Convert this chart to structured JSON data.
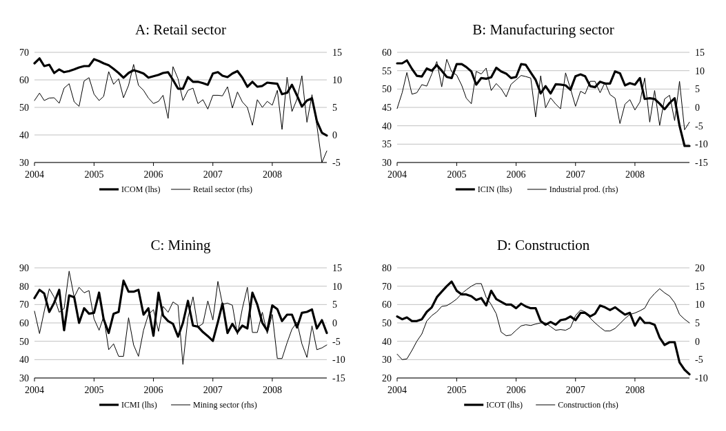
{
  "chart_data": [
    {
      "type": "line",
      "title": "A: Retail sector",
      "x": [
        "2004-01",
        "2004-02",
        "2004-03",
        "2004-04",
        "2004-05",
        "2004-06",
        "2004-07",
        "2004-08",
        "2004-09",
        "2004-10",
        "2004-11",
        "2004-12",
        "2005-01",
        "2005-02",
        "2005-03",
        "2005-04",
        "2005-05",
        "2005-06",
        "2005-07",
        "2005-08",
        "2005-09",
        "2005-10",
        "2005-11",
        "2005-12",
        "2006-01",
        "2006-02",
        "2006-03",
        "2006-04",
        "2006-05",
        "2006-06",
        "2006-07",
        "2006-08",
        "2006-09",
        "2006-10",
        "2006-11",
        "2006-12",
        "2007-01",
        "2007-02",
        "2007-03",
        "2007-04",
        "2007-05",
        "2007-06",
        "2007-07",
        "2007-08",
        "2007-09",
        "2007-10",
        "2007-11",
        "2007-12",
        "2008-01",
        "2008-02",
        "2008-03",
        "2008-04",
        "2008-05",
        "2008-06",
        "2008-07",
        "2008-08",
        "2008-09",
        "2008-10",
        "2008-11",
        "2008-12"
      ],
      "xlim": [
        "2004-01",
        "2008-12"
      ],
      "xticks": [
        "2004",
        "2005",
        "2006",
        "2007",
        "2008"
      ],
      "ylim": [
        30,
        70
      ],
      "yticks": [
        30,
        40,
        50,
        60,
        70
      ],
      "y2lim": [
        -5,
        15
      ],
      "y2ticks": [
        -5,
        0,
        5,
        10,
        15
      ],
      "grid": "y",
      "legend": "bottom",
      "series": [
        {
          "name": "ICOM (lhs)",
          "color": "#000000",
          "values": [
            66,
            67.8,
            65,
            65.5,
            62.5,
            63.8,
            62.8,
            63.2,
            63.8,
            64.5,
            65,
            65,
            67.5,
            66.8,
            66,
            65.3,
            64,
            62.5,
            60.8,
            62.5,
            63.5,
            63,
            62.3,
            60.8,
            61.3,
            61.8,
            62.5,
            62.8,
            60,
            56.8,
            56.8,
            61,
            59.3,
            59.3,
            58.8,
            58.2,
            62.3,
            62.8,
            61.5,
            61,
            62.3,
            63.2,
            60.8,
            57.5,
            59.3,
            57.5,
            57.8,
            59,
            58.8,
            58.6,
            54.8,
            55.3,
            58.2,
            54.3,
            50.3,
            52.5,
            53.3,
            45,
            40.8,
            39.8
          ]
        },
        {
          "name": "Retail sector (rhs)",
          "color": "#000000",
          "axis": "y2",
          "values": [
            6.25,
            7.6,
            6.25,
            6.7,
            6.75,
            5.75,
            8.5,
            9.3,
            6,
            5.2,
            9.8,
            10.4,
            7.4,
            6.25,
            7,
            11.5,
            9.2,
            10.2,
            6.75,
            9,
            12.8,
            9,
            8.1,
            6.7,
            5.7,
            6.1,
            7.2,
            3,
            12.4,
            10.2,
            6.25,
            8.1,
            8.5,
            5.7,
            6.4,
            4.7,
            7.2,
            7.2,
            7.1,
            8.75,
            4.9,
            7.8,
            6,
            5,
            1.75,
            6.4,
            5,
            6.1,
            5.4,
            8.1,
            1,
            10.5,
            4.25,
            6.5,
            10.75,
            2.3,
            7.3,
            1.7,
            -5,
            -2.9
          ]
        }
      ]
    },
    {
      "type": "line",
      "title": "B: Manufacturing sector",
      "x": [
        "2004-01",
        "2004-02",
        "2004-03",
        "2004-04",
        "2004-05",
        "2004-06",
        "2004-07",
        "2004-08",
        "2004-09",
        "2004-10",
        "2004-11",
        "2004-12",
        "2005-01",
        "2005-02",
        "2005-03",
        "2005-04",
        "2005-05",
        "2005-06",
        "2005-07",
        "2005-08",
        "2005-09",
        "2005-10",
        "2005-11",
        "2005-12",
        "2006-01",
        "2006-02",
        "2006-03",
        "2006-04",
        "2006-05",
        "2006-06",
        "2006-07",
        "2006-08",
        "2006-09",
        "2006-10",
        "2006-11",
        "2006-12",
        "2007-01",
        "2007-02",
        "2007-03",
        "2007-04",
        "2007-05",
        "2007-06",
        "2007-07",
        "2007-08",
        "2007-09",
        "2007-10",
        "2007-11",
        "2007-12",
        "2008-01",
        "2008-02",
        "2008-03",
        "2008-04",
        "2008-05",
        "2008-06",
        "2008-07",
        "2008-08",
        "2008-09",
        "2008-10",
        "2008-11",
        "2008-12"
      ],
      "xlim": [
        "2004-01",
        "2008-12"
      ],
      "xticks": [
        "2004",
        "2005",
        "2006",
        "2007",
        "2008"
      ],
      "ylim": [
        30,
        60
      ],
      "yticks": [
        30,
        35,
        40,
        45,
        50,
        55,
        60
      ],
      "y2lim": [
        -15,
        15
      ],
      "y2ticks": [
        -15,
        -10,
        -5,
        0,
        5,
        10,
        15
      ],
      "grid": "y",
      "legend": "bottom",
      "series": [
        {
          "name": "ICIN (lhs)",
          "color": "#000000",
          "values": [
            57,
            57,
            57.8,
            55.5,
            53.6,
            53.4,
            55.6,
            55,
            56.5,
            55,
            53.3,
            53,
            56.8,
            56.8,
            56,
            54.8,
            51.2,
            53,
            52.8,
            53.2,
            55.8,
            54.8,
            54.2,
            53,
            53.3,
            56.8,
            56.6,
            54.5,
            52.5,
            48.8,
            50.8,
            48.8,
            51.3,
            51.2,
            51,
            49.8,
            53.5,
            54,
            53.5,
            50.8,
            50.5,
            52,
            51.5,
            51.5,
            54.8,
            54.3,
            51,
            51.6,
            51.2,
            53,
            47.3,
            47.5,
            47.3,
            46,
            44.5,
            46.2,
            47.5,
            40,
            34.5,
            34.5
          ]
        },
        {
          "name": "Industrial prod. (rhs)",
          "color": "#000000",
          "axis": "y2",
          "values": [
            -0.3,
            4,
            9.5,
            3.6,
            4,
            6.2,
            5.8,
            9.1,
            12.5,
            5.6,
            13.1,
            9.7,
            8.8,
            6,
            2.5,
            1,
            9.8,
            9.1,
            10.7,
            4.6,
            6.5,
            5.1,
            2.9,
            6.3,
            7.5,
            8.7,
            8.4,
            8,
            -2.6,
            8.6,
            -0.1,
            2.6,
            0.9,
            -0.4,
            9.4,
            5.1,
            0.3,
            4.4,
            3.7,
            7.1,
            7.1,
            4,
            6.8,
            3.5,
            2.5,
            -4.4,
            0.9,
            2.1,
            -0.7,
            1.5,
            8,
            -4,
            4.6,
            -4.9,
            2.3,
            3.3,
            -3.6,
            7.1,
            -6.1,
            -4
          ]
        }
      ]
    },
    {
      "type": "line",
      "title": "C: Mining",
      "x": [
        "2004-01",
        "2004-02",
        "2004-03",
        "2004-04",
        "2004-05",
        "2004-06",
        "2004-07",
        "2004-08",
        "2004-09",
        "2004-10",
        "2004-11",
        "2004-12",
        "2005-01",
        "2005-02",
        "2005-03",
        "2005-04",
        "2005-05",
        "2005-06",
        "2005-07",
        "2005-08",
        "2005-09",
        "2005-10",
        "2005-11",
        "2005-12",
        "2006-01",
        "2006-02",
        "2006-03",
        "2006-04",
        "2006-05",
        "2006-06",
        "2006-07",
        "2006-08",
        "2006-09",
        "2006-10",
        "2006-11",
        "2006-12",
        "2007-01",
        "2007-02",
        "2007-03",
        "2007-04",
        "2007-05",
        "2007-06",
        "2007-07",
        "2007-08",
        "2007-09",
        "2007-10",
        "2007-11",
        "2007-12",
        "2008-01",
        "2008-02",
        "2008-03",
        "2008-04",
        "2008-05",
        "2008-06",
        "2008-07",
        "2008-08",
        "2008-09",
        "2008-10",
        "2008-11",
        "2008-12"
      ],
      "xlim": [
        "2004-01",
        "2008-12"
      ],
      "xticks": [
        "2004",
        "2005",
        "2006",
        "2007",
        "2008"
      ],
      "ylim": [
        30,
        90
      ],
      "yticks": [
        30,
        40,
        50,
        60,
        70,
        80,
        90
      ],
      "y2lim": [
        -15,
        15
      ],
      "y2ticks": [
        -15,
        -10,
        -5,
        0,
        5,
        10,
        15
      ],
      "grid": "y",
      "legend": "bottom",
      "series": [
        {
          "name": "ICMI (lhs)",
          "color": "#000000",
          "values": [
            73.5,
            78,
            76,
            66,
            71,
            78,
            56,
            75,
            74,
            60,
            68,
            65,
            65.5,
            76.5,
            62,
            54.5,
            65,
            66,
            83,
            77,
            77,
            78,
            64.5,
            68,
            53,
            76.5,
            64,
            61,
            59.5,
            52.5,
            60,
            72,
            58.5,
            58,
            55,
            52.8,
            50.2,
            60.5,
            70.5,
            54.5,
            59.5,
            55,
            58.5,
            57,
            76.5,
            70,
            60,
            55.8,
            69.5,
            67.5,
            61,
            64.5,
            64.5,
            57.5,
            65.5,
            66,
            67.3,
            57,
            61.5,
            54.5
          ]
        },
        {
          "name": "Mining sector (rhs)",
          "color": "#000000",
          "axis": "y2",
          "values": [
            3.2,
            -2.9,
            3.2,
            9.3,
            7,
            2.9,
            3.9,
            14.1,
            7,
            9.7,
            8.2,
            8.8,
            1.1,
            -2,
            1.7,
            -7.3,
            -5.7,
            -9.1,
            -9.1,
            1.4,
            -6,
            -9.1,
            -2,
            2.3,
            3.6,
            -2.3,
            4.5,
            2.9,
            5.7,
            4.8,
            -11.3,
            1.4,
            7.1,
            -1.1,
            -0.2,
            6,
            0.8,
            11.3,
            5.1,
            5.4,
            4.8,
            -3.2,
            3.9,
            9.7,
            -2.6,
            -2.6,
            2.9,
            -2.9,
            2.3,
            -9.7,
            -9.7,
            -5.4,
            -1.7,
            0.2,
            -5.7,
            -9.4,
            -0.8,
            -7.3,
            -6.8,
            -6
          ]
        }
      ]
    },
    {
      "type": "line",
      "title": "D: Construction",
      "x": [
        "2004-01",
        "2004-02",
        "2004-03",
        "2004-04",
        "2004-05",
        "2004-06",
        "2004-07",
        "2004-08",
        "2004-09",
        "2004-10",
        "2004-11",
        "2004-12",
        "2005-01",
        "2005-02",
        "2005-03",
        "2005-04",
        "2005-05",
        "2005-06",
        "2005-07",
        "2005-08",
        "2005-09",
        "2005-10",
        "2005-11",
        "2005-12",
        "2006-01",
        "2006-02",
        "2006-03",
        "2006-04",
        "2006-05",
        "2006-06",
        "2006-07",
        "2006-08",
        "2006-09",
        "2006-10",
        "2006-11",
        "2006-12",
        "2007-01",
        "2007-02",
        "2007-03",
        "2007-04",
        "2007-05",
        "2007-06",
        "2007-07",
        "2007-08",
        "2007-09",
        "2007-10",
        "2007-11",
        "2007-12",
        "2008-01",
        "2008-02",
        "2008-03",
        "2008-04",
        "2008-05",
        "2008-06",
        "2008-07",
        "2008-08",
        "2008-09",
        "2008-10",
        "2008-11",
        "2008-12"
      ],
      "xlim": [
        "2004-01",
        "2008-12"
      ],
      "xticks": [
        "2004",
        "2005",
        "2006",
        "2007",
        "2008"
      ],
      "ylim": [
        20,
        80
      ],
      "yticks": [
        20,
        30,
        40,
        50,
        60,
        70,
        80
      ],
      "y2lim": [
        -10,
        20
      ],
      "y2ticks": [
        -10,
        -5,
        0,
        5,
        10,
        15,
        20
      ],
      "grid": "y",
      "legend": "bottom",
      "series": [
        {
          "name": "ICOT (lhs)",
          "color": "#000000",
          "values": [
            53.5,
            52,
            53,
            51,
            51,
            52,
            56,
            58.5,
            64,
            67,
            70,
            72.5,
            67.5,
            65.5,
            65.5,
            64.5,
            62.5,
            63.5,
            59.5,
            67.5,
            63,
            61.5,
            60,
            60,
            58,
            60.5,
            59,
            58,
            58,
            51,
            49,
            50.5,
            49,
            51.5,
            52,
            53.5,
            51.5,
            55.5,
            55.5,
            53.5,
            55,
            59.5,
            58.5,
            57,
            58.5,
            56.5,
            54.5,
            55.5,
            48.5,
            53,
            50,
            50,
            49,
            42,
            38,
            39.5,
            39.5,
            28.5,
            24.5,
            22
          ]
        },
        {
          "name": "Construction (rhs)",
          "color": "#000000",
          "axis": "y2",
          "values": [
            -3.5,
            -5,
            -4.8,
            -2.5,
            0,
            2,
            5.5,
            7,
            8,
            9.5,
            9.7,
            10.5,
            11.5,
            13,
            14,
            15,
            15.7,
            15.7,
            12,
            10,
            7.5,
            2.5,
            1.5,
            1.7,
            3,
            4.2,
            4.5,
            4.3,
            4.7,
            5,
            5,
            4,
            3,
            3.2,
            3,
            3.7,
            7,
            8.5,
            8,
            6.3,
            5,
            3.8,
            2.8,
            2.8,
            3.5,
            4.8,
            6.2,
            7.3,
            7.7,
            8.3,
            9,
            11.5,
            13,
            14.3,
            13.2,
            12.3,
            10.5,
            7.3,
            6,
            5
          ]
        }
      ]
    }
  ]
}
